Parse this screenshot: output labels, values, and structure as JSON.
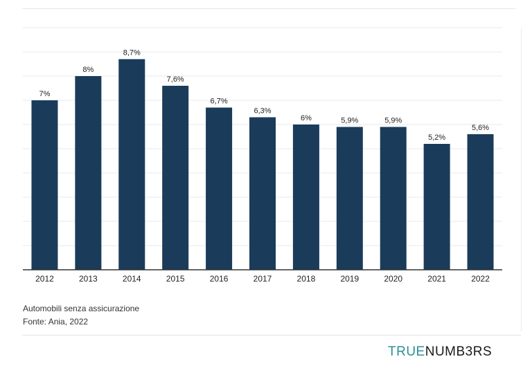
{
  "chart_data": {
    "type": "bar",
    "categories": [
      "2012",
      "2013",
      "2014",
      "2015",
      "2016",
      "2017",
      "2018",
      "2019",
      "2020",
      "2021",
      "2022"
    ],
    "values": [
      7,
      8,
      8.7,
      7.6,
      6.7,
      6.3,
      6,
      5.9,
      5.9,
      5.2,
      5.6
    ],
    "value_labels": [
      "7%",
      "8%",
      "8,7%",
      "7,6%",
      "6,7%",
      "6,3%",
      "6%",
      "5,9%",
      "5,9%",
      "5,2%",
      "5,6%"
    ],
    "ylim": [
      0,
      10
    ],
    "grid": true,
    "bar_color": "#1a3c5a"
  },
  "footer": {
    "caption": "Automobili senza assicurazione",
    "source": "Fonte: Ania, 2022"
  },
  "brand": {
    "part1": "TRUE",
    "part2": "NUMB3RS",
    "accent_color": "#2a8f97"
  }
}
